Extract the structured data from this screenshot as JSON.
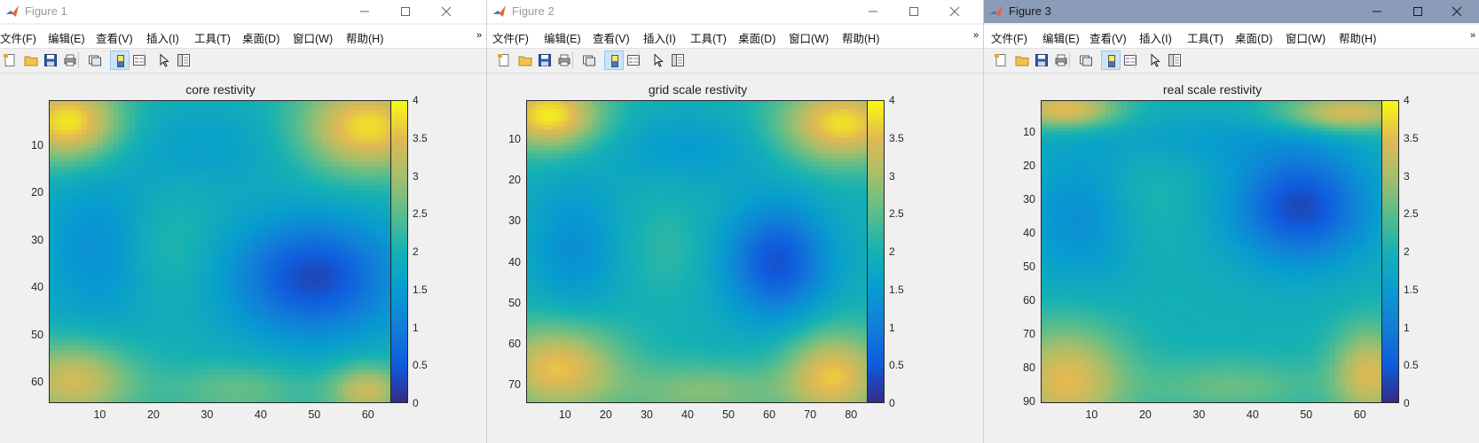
{
  "colors": {
    "active_titlebar": "#8a9cb8",
    "parula_min": "#352a87",
    "parula_max": "#f9fb0e"
  },
  "menus": [
    "文件(F)",
    "编辑(E)",
    "查看(V)",
    "插入(I)",
    "工具(T)",
    "桌面(D)",
    "窗口(W)",
    "帮助(H)"
  ],
  "toolbar_icons": [
    "new-figure-icon",
    "open-file-icon",
    "save-icon",
    "print-icon",
    "link-plot-icon",
    "insert-colorbar-icon",
    "insert-legend-icon",
    "edit-plot-icon",
    "property-inspector-icon"
  ],
  "window_controls": [
    "minimize-icon",
    "maximize-icon",
    "close-icon"
  ],
  "colorbar_ticks": [
    "0",
    "0.5",
    "1",
    "1.5",
    "2",
    "2.5",
    "3",
    "3.5",
    "4"
  ],
  "figures": [
    {
      "window_title": "Figure 1",
      "active": false,
      "chart_data": {
        "type": "heatmap",
        "title": "core restivity",
        "xlabel": "",
        "ylabel": "",
        "x_ticks": [
          10,
          20,
          30,
          40,
          50,
          60
        ],
        "y_ticks": [
          10,
          20,
          30,
          40,
          50,
          60
        ],
        "xlim": [
          0.5,
          64.5
        ],
        "ylim": [
          0.5,
          64.5
        ],
        "y_reversed": true,
        "colormap": "parula",
        "clim": [
          0,
          4
        ],
        "colorbar_ticks": [
          0,
          0.5,
          1,
          1.5,
          2,
          2.5,
          3,
          3.5,
          4
        ],
        "features": [
          {
            "x": 4,
            "y": 5,
            "value": 3.9,
            "sx": 7,
            "sy": 6
          },
          {
            "x": 60,
            "y": 6,
            "value": 3.8,
            "sx": 9,
            "sy": 7
          },
          {
            "x": 5,
            "y": 60,
            "value": 3.4,
            "sx": 8,
            "sy": 6
          },
          {
            "x": 60,
            "y": 62,
            "value": 3.3,
            "sx": 5,
            "sy": 4
          },
          {
            "x": 50,
            "y": 38,
            "value": 0.3,
            "sx": 11,
            "sy": 9
          },
          {
            "x": 22,
            "y": 32,
            "value": 2.3,
            "sx": 6,
            "sy": 8
          },
          {
            "x": 10,
            "y": 32,
            "value": 1.3,
            "sx": 8,
            "sy": 12
          },
          {
            "x": 30,
            "y": 10,
            "value": 1.6,
            "sx": 12,
            "sy": 6
          },
          {
            "x": 36,
            "y": 62,
            "value": 2.6,
            "sx": 10,
            "sy": 4
          }
        ],
        "base_value": 1.95
      }
    },
    {
      "window_title": "Figure 2",
      "active": false,
      "chart_data": {
        "type": "heatmap",
        "title": "grid scale restivity",
        "xlabel": "",
        "ylabel": "",
        "x_ticks": [
          10,
          20,
          30,
          40,
          50,
          60,
          70,
          80
        ],
        "y_ticks": [
          10,
          20,
          30,
          40,
          50,
          60,
          70
        ],
        "xlim": [
          0.5,
          84.5
        ],
        "ylim": [
          0.5,
          74.5
        ],
        "y_reversed": true,
        "colormap": "parula",
        "clim": [
          0,
          4
        ],
        "colorbar_ticks": [
          0,
          0.5,
          1,
          1.5,
          2,
          2.5,
          3,
          3.5,
          4
        ],
        "features": [
          {
            "x": 6,
            "y": 4,
            "value": 3.9,
            "sx": 9,
            "sy": 6
          },
          {
            "x": 78,
            "y": 6,
            "value": 3.8,
            "sx": 11,
            "sy": 7
          },
          {
            "x": 8,
            "y": 66,
            "value": 3.6,
            "sx": 11,
            "sy": 8
          },
          {
            "x": 76,
            "y": 68,
            "value": 3.6,
            "sx": 9,
            "sy": 8
          },
          {
            "x": 62,
            "y": 40,
            "value": 0.4,
            "sx": 9,
            "sy": 10
          },
          {
            "x": 35,
            "y": 37,
            "value": 2.2,
            "sx": 7,
            "sy": 8
          },
          {
            "x": 12,
            "y": 37,
            "value": 1.3,
            "sx": 8,
            "sy": 12
          },
          {
            "x": 40,
            "y": 12,
            "value": 1.5,
            "sx": 14,
            "sy": 6
          },
          {
            "x": 44,
            "y": 72,
            "value": 2.8,
            "sx": 14,
            "sy": 5
          }
        ],
        "base_value": 1.95
      }
    },
    {
      "window_title": "Figure 3",
      "active": true,
      "chart_data": {
        "type": "heatmap",
        "title": "real scale restivity",
        "xlabel": "",
        "ylabel": "",
        "x_ticks": [
          10,
          20,
          30,
          40,
          50,
          60
        ],
        "y_ticks": [
          10,
          20,
          30,
          40,
          50,
          60,
          70,
          80,
          90
        ],
        "xlim": [
          0.5,
          64.5
        ],
        "ylim": [
          0.5,
          90.5
        ],
        "y_reversed": true,
        "colormap": "parula",
        "clim": [
          0,
          4
        ],
        "colorbar_ticks": [
          0,
          0.5,
          1,
          1.5,
          2,
          2.5,
          3,
          3.5,
          4
        ],
        "features": [
          {
            "x": 5,
            "y": 3,
            "value": 3.6,
            "sx": 7,
            "sy": 4
          },
          {
            "x": 58,
            "y": 4,
            "value": 3.5,
            "sx": 9,
            "sy": 4
          },
          {
            "x": 5,
            "y": 84,
            "value": 3.5,
            "sx": 8,
            "sy": 12
          },
          {
            "x": 62,
            "y": 82,
            "value": 3.4,
            "sx": 5,
            "sy": 10
          },
          {
            "x": 49,
            "y": 32,
            "value": 0.3,
            "sx": 9,
            "sy": 12
          },
          {
            "x": 20,
            "y": 30,
            "value": 2.2,
            "sx": 6,
            "sy": 12
          },
          {
            "x": 8,
            "y": 36,
            "value": 1.3,
            "sx": 8,
            "sy": 14
          },
          {
            "x": 30,
            "y": 12,
            "value": 1.6,
            "sx": 16,
            "sy": 6
          },
          {
            "x": 36,
            "y": 86,
            "value": 2.6,
            "sx": 12,
            "sy": 6
          }
        ],
        "base_value": 1.95
      }
    }
  ]
}
